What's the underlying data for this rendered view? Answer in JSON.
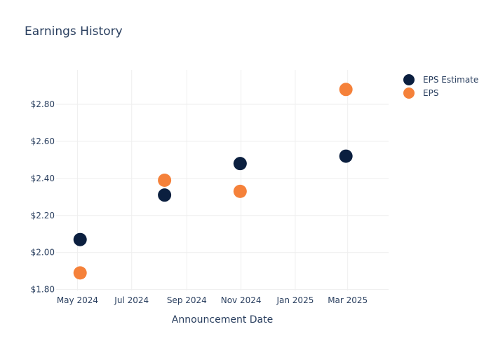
{
  "chart_data": {
    "type": "scatter",
    "title": "Earnings History",
    "xlabel": "Announcement Date",
    "ylabel": "",
    "x_axis": {
      "type": "date",
      "range": [
        "2024-04-07",
        "2025-04-16"
      ],
      "ticks": [
        {
          "value": "2024-05-01",
          "label": "May 2024"
        },
        {
          "value": "2024-07-01",
          "label": "Jul 2024"
        },
        {
          "value": "2024-09-01",
          "label": "Sep 2024"
        },
        {
          "value": "2024-11-01",
          "label": "Nov 2024"
        },
        {
          "value": "2025-01-01",
          "label": "Jan 2025"
        },
        {
          "value": "2025-03-01",
          "label": "Mar 2025"
        }
      ]
    },
    "y_axis": {
      "range": [
        1.795,
        2.985
      ],
      "ticks": [
        {
          "value": 1.8,
          "label": "$1.80"
        },
        {
          "value": 2.0,
          "label": "$2.00"
        },
        {
          "value": 2.2,
          "label": "$2.20"
        },
        {
          "value": 2.4,
          "label": "$2.40"
        },
        {
          "value": 2.6,
          "label": "$2.60"
        },
        {
          "value": 2.8,
          "label": "$2.80"
        }
      ]
    },
    "grid": true,
    "legend_position": "top-right",
    "series": [
      {
        "name": "EPS Estimate",
        "color": "#0b1f3f",
        "points": [
          {
            "x": "2024-05-04",
            "y": 2.07
          },
          {
            "x": "2024-08-07",
            "y": 2.31
          },
          {
            "x": "2024-10-31",
            "y": 2.48
          },
          {
            "x": "2025-02-27",
            "y": 2.52
          }
        ]
      },
      {
        "name": "EPS",
        "color": "#f5813a",
        "points": [
          {
            "x": "2024-05-04",
            "y": 1.89
          },
          {
            "x": "2024-08-07",
            "y": 2.39
          },
          {
            "x": "2024-10-31",
            "y": 2.33
          },
          {
            "x": "2025-02-27",
            "y": 2.88
          }
        ]
      }
    ]
  }
}
